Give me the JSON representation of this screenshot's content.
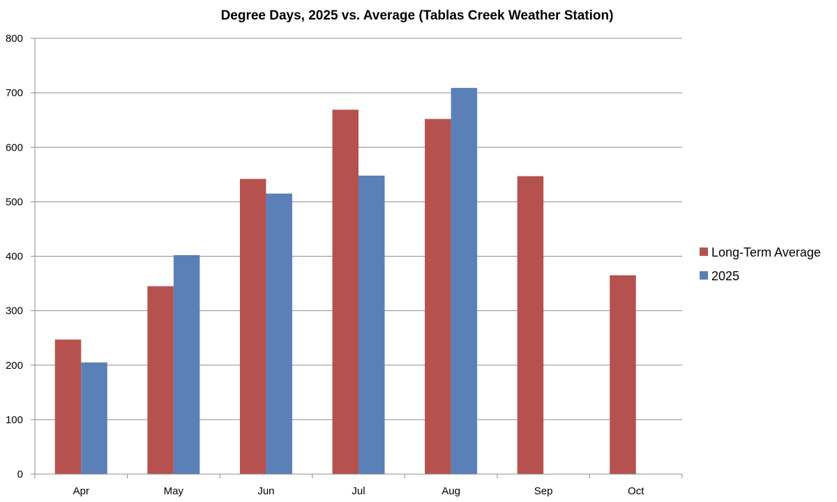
{
  "chart_data": {
    "type": "bar",
    "title": "Degree Days, 2025 vs. Average (Tablas Creek Weather Station)",
    "xlabel": "",
    "ylabel": "",
    "categories": [
      "Apr",
      "May",
      "Jun",
      "Jul",
      "Aug",
      "Sep",
      "Oct"
    ],
    "ylim": [
      0,
      800
    ],
    "yticks": [
      0,
      100,
      200,
      300,
      400,
      500,
      600,
      700,
      800
    ],
    "grid": true,
    "legend_position": "right",
    "series": [
      {
        "name": "Long-Term Average",
        "color": "#b5524f",
        "values": [
          247,
          345,
          542,
          669,
          652,
          547,
          365
        ]
      },
      {
        "name": "2025",
        "color": "#5b80b8",
        "values": [
          205,
          402,
          515,
          548,
          709,
          null,
          null
        ]
      }
    ]
  }
}
